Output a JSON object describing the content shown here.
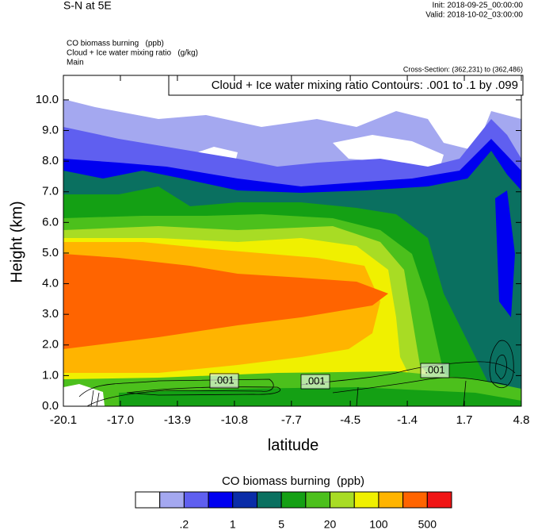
{
  "chart_data": {
    "type": "contour",
    "title": "S-N at 5E",
    "init": "Init: 2018-09-25_00:00:00",
    "valid": "Valid: 2018-10-02_03:00:00",
    "fields": [
      "CO biomass burning   (ppb)",
      "Cloud + Ice water mixing ratio   (g/kg)",
      "Main"
    ],
    "cross_section": "Cross-Section: (362,231) to (362,486)",
    "contour_note": "Cloud + Ice water mixing ratio Contours: .001 to .1 by .099",
    "contour_labels": [
      ".001",
      ".001",
      ".001"
    ],
    "x_label": "latitude",
    "y_label": "Height (km)",
    "xlim": [
      -20.1,
      4.8
    ],
    "ylim": [
      0,
      10.8
    ],
    "xticks": [
      {
        "value": -20.1,
        "label": "-20.1"
      },
      {
        "value": -17,
        "label": "-17.0"
      },
      {
        "value": -13.9,
        "label": "-13.9"
      },
      {
        "value": -10.8,
        "label": "-10.8"
      },
      {
        "value": -7.7,
        "label": "-7.7"
      },
      {
        "value": -4.5,
        "label": "-4.5"
      },
      {
        "value": -1.4,
        "label": "-1.4"
      },
      {
        "value": 1.7,
        "label": "1.7"
      },
      {
        "value": 4.8,
        "label": "4.8"
      }
    ],
    "yticks": [
      {
        "value": 0,
        "label": "0.0"
      },
      {
        "value": 1,
        "label": "1.0"
      },
      {
        "value": 2,
        "label": "2.0"
      },
      {
        "value": 3,
        "label": "3.0"
      },
      {
        "value": 4,
        "label": "4.0"
      },
      {
        "value": 5,
        "label": "5.0"
      },
      {
        "value": 6,
        "label": "6.0"
      },
      {
        "value": 7,
        "label": "7.0"
      },
      {
        "value": 8,
        "label": "8.0"
      },
      {
        "value": 9,
        "label": "9.0"
      },
      {
        "value": 10,
        "label": "10.0"
      }
    ],
    "colorbar": {
      "title": "CO biomass burning  (ppb)",
      "colors": [
        "#ffffff",
        "#a4a8f0",
        "#5f5ff0",
        "#0000f0",
        "#0a2ca8",
        "#0a7060",
        "#14a014",
        "#4cc01c",
        "#a8dc24",
        "#f0f000",
        "#ffb400",
        "#ff6400",
        "#f01414"
      ],
      "labels": [
        {
          "value": 0.2,
          "label": ".2"
        },
        1,
        5,
        20,
        100,
        500
      ]
    }
  }
}
